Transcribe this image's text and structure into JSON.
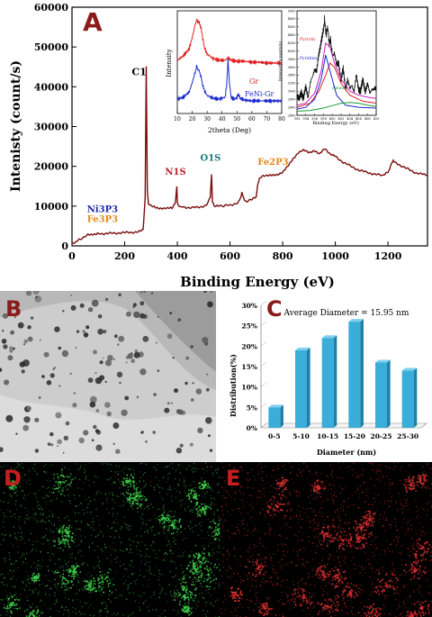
{
  "panels": {
    "A": {
      "letter": "A",
      "color": "#8b1a1a"
    },
    "B": {
      "letter": "B",
      "color": "#8b1a1a"
    },
    "C": {
      "letter": "C",
      "color": "#8b1a1a"
    },
    "D": {
      "letter": "D",
      "color": "#8b1a1a"
    },
    "E": {
      "letter": "E",
      "color": "#8b1a1a"
    }
  },
  "chart_data": [
    {
      "id": "xps-survey",
      "type": "line",
      "xlabel": "Binding Energy (eV)",
      "ylabel": "Intenisty (count/s)",
      "xlim": [
        0,
        1350
      ],
      "ylim": [
        0,
        60000
      ],
      "xticks": [
        0,
        200,
        400,
        600,
        800,
        1000,
        1200
      ],
      "yticks": [
        0,
        10000,
        20000,
        30000,
        40000,
        50000,
        60000
      ],
      "line_color": "#7a0c0c",
      "series": [
        {
          "x": [
            0,
            10,
            20,
            30,
            45,
            60,
            80,
            100,
            130,
            160,
            190,
            220,
            250,
            270,
            278,
            282,
            284,
            286,
            290,
            300,
            320,
            340,
            360,
            380,
            392,
            398,
            400,
            404,
            420,
            450,
            480,
            510,
            525,
            530,
            533,
            540,
            560,
            600,
            630,
            640,
            645,
            655,
            680,
            700,
            705,
            712,
            725,
            740,
            760,
            780,
            800,
            820,
            840,
            860,
            880,
            900,
            920,
            940,
            960,
            980,
            1000,
            1030,
            1060,
            1090,
            1120,
            1150,
            1180,
            1200,
            1210,
            1220,
            1240,
            1270,
            1300,
            1330,
            1350
          ],
          "y": [
            700,
            900,
            1200,
            1600,
            2300,
            2800,
            3000,
            3100,
            3100,
            3200,
            3300,
            3400,
            3500,
            4200,
            12000,
            45000,
            30000,
            14000,
            10500,
            10000,
            9600,
            9500,
            9400,
            9500,
            10500,
            15000,
            11000,
            10000,
            9800,
            9600,
            9700,
            10200,
            12000,
            18000,
            11000,
            10000,
            10000,
            10300,
            10700,
            12000,
            13500,
            11200,
            11500,
            12300,
            15500,
            17000,
            17500,
            17600,
            17700,
            18000,
            18500,
            20000,
            22000,
            23500,
            24000,
            23500,
            24000,
            23000,
            24500,
            23200,
            22500,
            21000,
            20000,
            19000,
            18500,
            18000,
            17700,
            18500,
            20000,
            21500,
            20500,
            19500,
            18500,
            18000,
            17800
          ]
        }
      ],
      "annotations": [
        {
          "text": "C1",
          "x": 290,
          "y": 42000,
          "color": "#000000"
        },
        {
          "text": "N1S",
          "x": 400,
          "y": 16500,
          "color": "#c0202a"
        },
        {
          "text": "O1S",
          "x": 533,
          "y": 20000,
          "color": "#1a7a7a"
        },
        {
          "text": "Fe2P3",
          "x": 705,
          "y": 19000,
          "color": "#e08a1e"
        },
        {
          "text": "Ni3P3",
          "x": 40,
          "y": 8500,
          "color": "#1f2aa8"
        },
        {
          "text": "Fe3P3",
          "x": 40,
          "y": 6000,
          "color": "#e08a1e"
        }
      ]
    },
    {
      "id": "xrd-inset",
      "type": "line",
      "xlabel": "2theta (Deg)",
      "ylabel": "Intensity",
      "xlim": [
        10,
        80
      ],
      "xticks": [
        10,
        20,
        30,
        40,
        50,
        60,
        70,
        80
      ],
      "series": [
        {
          "name": "Gr",
          "color": "#e02020",
          "x": [
            10,
            14,
            18,
            20,
            22,
            23,
            24,
            25,
            26,
            27,
            28,
            30,
            34,
            38,
            42,
            44,
            46,
            50,
            55,
            60,
            65,
            70,
            75,
            80
          ],
          "y": [
            0.55,
            0.6,
            0.68,
            0.8,
            0.95,
            1.0,
            0.98,
            0.96,
            0.9,
            0.8,
            0.7,
            0.62,
            0.57,
            0.55,
            0.55,
            0.58,
            0.55,
            0.54,
            0.54,
            0.53,
            0.53,
            0.52,
            0.52,
            0.52
          ]
        },
        {
          "name": "FeNi-Gr",
          "color": "#1a2ad0",
          "x": [
            10,
            14,
            18,
            20,
            22,
            23,
            24,
            25,
            26,
            27,
            28,
            30,
            34,
            38,
            42,
            43,
            44,
            45,
            46,
            48,
            50,
            51,
            52,
            55,
            60,
            65,
            70,
            75,
            80
          ],
          "y": [
            0.12,
            0.14,
            0.2,
            0.3,
            0.42,
            0.48,
            0.45,
            0.42,
            0.36,
            0.28,
            0.22,
            0.16,
            0.13,
            0.12,
            0.14,
            0.25,
            0.55,
            0.3,
            0.14,
            0.12,
            0.13,
            0.18,
            0.13,
            0.11,
            0.1,
            0.1,
            0.1,
            0.1,
            0.1
          ]
        }
      ]
    },
    {
      "id": "n1s-inset",
      "type": "line",
      "xlabel": "Binding Energy (eV)",
      "ylabel": "Intensity (counts/s)",
      "xlim": [
        392,
        410
      ],
      "xticks": [
        392,
        394,
        396,
        398,
        400,
        402,
        404,
        406,
        408,
        410
      ],
      "ylim": [
        2400,
        5000
      ],
      "yticks": [
        2400,
        2600,
        2800,
        3000,
        3200,
        3400,
        3600,
        3800,
        4000,
        4200,
        4400,
        4600,
        4800,
        5000
      ],
      "series": [
        {
          "name": "raw",
          "color": "#111111",
          "x": [
            392,
            392.5,
            393,
            393.5,
            394,
            394.5,
            395,
            395.5,
            396,
            396.5,
            397,
            397.5,
            398,
            398.3,
            398.6,
            399,
            399.3,
            399.6,
            400,
            400.5,
            401,
            401.5,
            402,
            402.5,
            403,
            403.5,
            404,
            404.5,
            405,
            405.5,
            406,
            406.5,
            407,
            407.5,
            408,
            408.5,
            409,
            409.5,
            410
          ],
          "y": [
            2900,
            2750,
            3000,
            2850,
            3050,
            2900,
            3200,
            3300,
            3600,
            3500,
            3900,
            4300,
            4500,
            4800,
            4400,
            4600,
            4200,
            4300,
            3900,
            4000,
            3600,
            3700,
            3300,
            3500,
            3100,
            3300,
            3000,
            3200,
            3000,
            3350,
            3100,
            3000,
            3250,
            3050,
            3150,
            2950,
            3100,
            3000,
            3050
          ]
        },
        {
          "name": "Pyrrolic",
          "color": "#e02020",
          "x": [
            392,
            395,
            397,
            398.5,
            399.5,
            400.5,
            402,
            404,
            407,
            410
          ],
          "y": [
            2600,
            2700,
            3000,
            3400,
            3700,
            3600,
            3200,
            2900,
            2750,
            2700
          ]
        },
        {
          "name": "Pyridinic",
          "color": "#1a2ad0",
          "x": [
            392,
            394,
            396,
            397.5,
            398.5,
            399.5,
            401,
            403,
            406,
            410
          ],
          "y": [
            2550,
            2600,
            2800,
            3300,
            3900,
            3500,
            2900,
            2650,
            2600,
            2580
          ]
        },
        {
          "name": "Amino",
          "color": "#1a9a3a",
          "x": [
            392,
            395,
            398,
            400,
            402,
            404,
            406,
            408,
            410
          ],
          "y": [
            2500,
            2520,
            2580,
            2640,
            2700,
            2720,
            2700,
            2650,
            2620
          ]
        },
        {
          "name": "envelope",
          "color": "#c020c0",
          "x": [
            392,
            394,
            396,
            397.5,
            398.5,
            399.5,
            400.5,
            402,
            404,
            406,
            408,
            410
          ],
          "y": [
            2650,
            2700,
            2950,
            3500,
            4200,
            4100,
            3700,
            3300,
            3000,
            2900,
            2850,
            2820
          ]
        }
      ]
    },
    {
      "id": "size-distribution",
      "type": "bar",
      "title": "Average Diameter = 15.95 nm",
      "xlabel": "Diameter (nm)",
      "ylabel": "Distribution(%)",
      "categories": [
        "0-5",
        "5-10",
        "10-15",
        "15-20",
        "20-25",
        "25-30"
      ],
      "values": [
        5,
        19,
        22,
        26,
        16,
        14
      ],
      "ylim": [
        0,
        30
      ],
      "yticks": [
        "0%",
        "5%",
        "10%",
        "15%",
        "20%",
        "25%",
        "30%"
      ],
      "bar_color": "#3aaed8"
    }
  ]
}
